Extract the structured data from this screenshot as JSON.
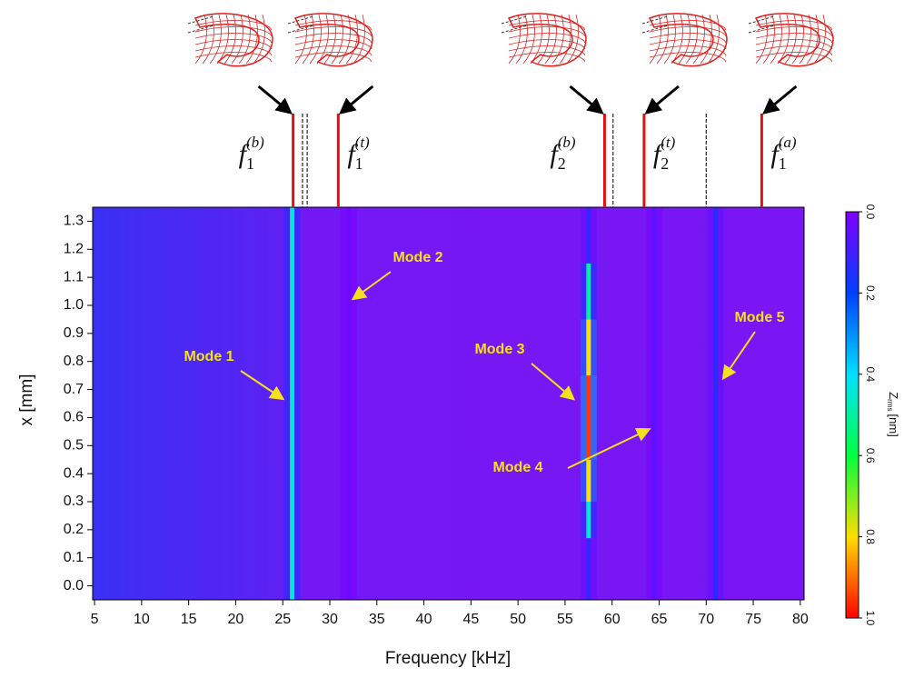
{
  "chart_data": {
    "type": "heatmap",
    "xlabel": "Frequency [kHz]",
    "ylabel": "x [mm]",
    "xlim": [
      4.8,
      80.4
    ],
    "ylim": [
      -0.05,
      1.35
    ],
    "xticks": [
      5,
      10,
      15,
      20,
      25,
      30,
      35,
      40,
      45,
      50,
      55,
      60,
      65,
      70,
      75,
      80
    ],
    "yticks": [
      {
        "value": 0,
        "label": "0.0"
      },
      0.1,
      0.2,
      0.3,
      0.4,
      0.5,
      0.6,
      0.7,
      0.8,
      0.9,
      {
        "value": 1,
        "label": "1.0"
      },
      1.1,
      1.2,
      1.3
    ],
    "colormap": [
      "#7f00ff",
      "#0040ff",
      "#00e0ff",
      "#00ff40",
      "#ffdd00",
      "#ff0000"
    ],
    "colorbar": {
      "label": "Z",
      "label_sub": "rms",
      "unit": "[nm]",
      "lim": [
        0,
        1
      ],
      "ticks": [
        {
          "value": 0,
          "label": "0.0"
        },
        0.2,
        0.4,
        0.6,
        0.8,
        {
          "value": 1,
          "label": "1.0"
        }
      ]
    },
    "ridges": [
      {
        "x": 26,
        "y0": -0.05,
        "y1": 1.35,
        "z": 0.45
      },
      {
        "x": 32,
        "y0": -0.05,
        "y1": 1.35,
        "z": 0.03
      },
      {
        "x": 57.5,
        "y0": -0.05,
        "y1": 0.17,
        "z": 0.12
      },
      {
        "x": 57.5,
        "y0": 0.17,
        "y1": 0.3,
        "z": 0.45
      },
      {
        "x": 57.5,
        "y0": 0.3,
        "y1": 0.45,
        "z": 0.8
      },
      {
        "x": 57.5,
        "y0": 0.45,
        "y1": 0.75,
        "z": 0.95
      },
      {
        "x": 57.5,
        "y0": 0.75,
        "y1": 0.95,
        "z": 0.8
      },
      {
        "x": 57.5,
        "y0": 0.95,
        "y1": 1.15,
        "z": 0.5
      },
      {
        "x": 57.5,
        "y0": 1.15,
        "y1": 1.35,
        "z": 0.12
      },
      {
        "x": 64.5,
        "y0": -0.05,
        "y1": 1.35,
        "z": 0.05
      },
      {
        "x": 71,
        "y0": -0.05,
        "y1": 1.35,
        "z": 0.15
      }
    ],
    "annotations": [
      "Mode 1",
      "Mode 2",
      "Mode 3",
      "Mode 4",
      "Mode 5"
    ],
    "resonances": [
      {
        "x": 26.1,
        "base": "f",
        "sub": "1",
        "sup": "(b)"
      },
      {
        "x": 30.9,
        "base": "f",
        "sub": "1",
        "sup": "(t)"
      },
      {
        "x": 59.2,
        "base": "f",
        "sub": "2",
        "sup": "(b)"
      },
      {
        "x": 63.4,
        "base": "f",
        "sub": "2",
        "sup": "(t)"
      },
      {
        "x": 75.9,
        "base": "f",
        "sub": "1",
        "sup": "(a)"
      }
    ],
    "dashed_lines": [
      27.1,
      27.6,
      60.1,
      70.0
    ]
  }
}
